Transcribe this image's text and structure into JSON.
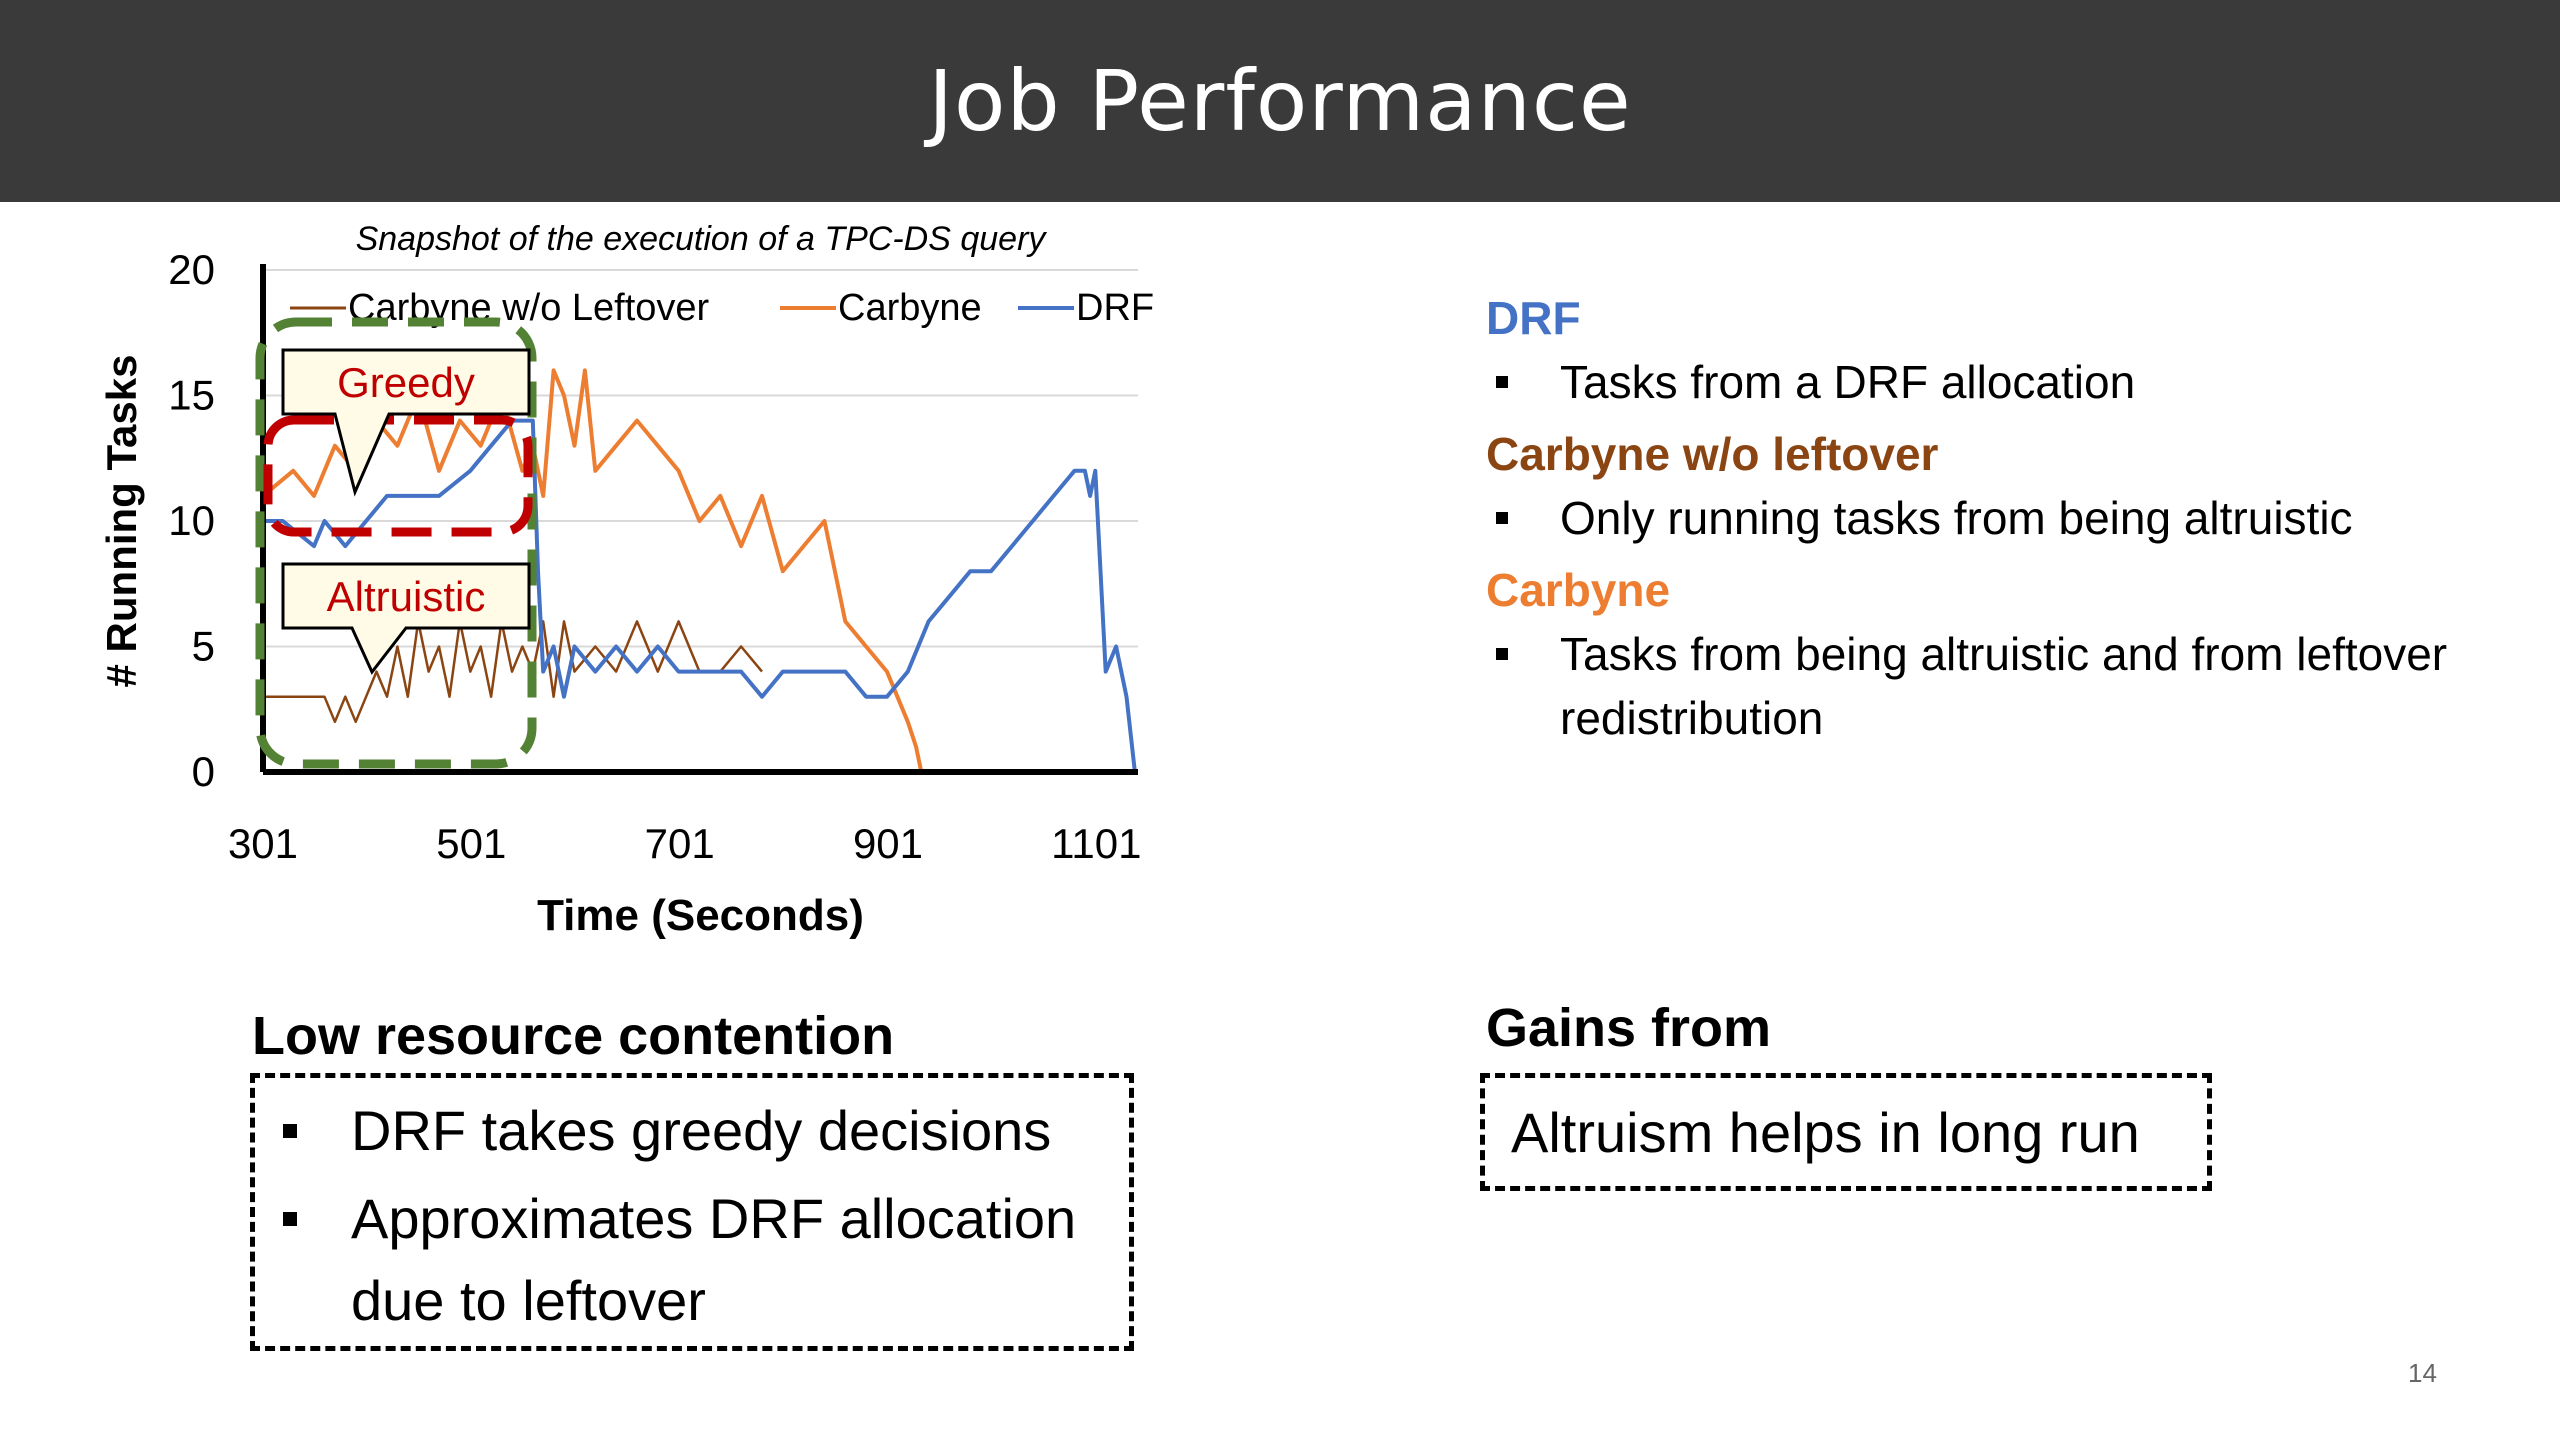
{
  "slide": {
    "title": "Job Performance",
    "page_number": "14"
  },
  "legend_panel": [
    {
      "heading": "DRF",
      "color": "#4472c4",
      "bullets": [
        "Tasks from a DRF allocation"
      ]
    },
    {
      "heading": "Carbyne w/o leftover",
      "color": "#8b4513",
      "bullets": [
        "Only running tasks from being altruistic"
      ]
    },
    {
      "heading": "Carbyne",
      "color": "#ed7d31",
      "bullets": [
        "Tasks from being altruistic and from leftover redistribution"
      ]
    }
  ],
  "low_contention": {
    "title": "Low resource contention",
    "bullets": [
      "DRF takes greedy decisions",
      "Approximates DRF allocation due to leftover"
    ]
  },
  "gains": {
    "title": "Gains from",
    "text": "Altruism helps in long run"
  },
  "colors": {
    "carbyne_wo": "#8b4513",
    "carbyne": "#ed7d31",
    "drf": "#4472c4",
    "greedy_box": "#c00000",
    "altruistic_box": "#548235"
  },
  "chart_data": {
    "type": "line",
    "title": "Snapshot of the execution of a TPC-DS query",
    "xlabel": "Time (Seconds)",
    "ylabel": "# Running Tasks",
    "xlim": [
      301,
      1141
    ],
    "ylim": [
      0,
      20
    ],
    "xticks": [
      301,
      501,
      701,
      901,
      1101
    ],
    "yticks": [
      0,
      5,
      10,
      15,
      20
    ],
    "grid": true,
    "legend_position": "top",
    "annotations": [
      {
        "text": "Greedy",
        "color": "#c00000"
      },
      {
        "text": "Altruistic",
        "color": "#c00000"
      }
    ],
    "series": [
      {
        "name": "Carbyne w/o Leftover",
        "x": [
          301,
          340,
          360,
          370,
          380,
          390,
          400,
          410,
          420,
          430,
          440,
          450,
          460,
          470,
          480,
          490,
          500,
          510,
          520,
          530,
          540,
          550,
          560,
          570,
          580,
          590,
          600,
          620,
          640,
          660,
          680,
          700,
          720,
          740,
          760,
          780
        ],
        "y": [
          3,
          3,
          3,
          2,
          3,
          2,
          3,
          4,
          3,
          5,
          3,
          6,
          4,
          5,
          3,
          6,
          4,
          5,
          3,
          6,
          4,
          5,
          4,
          6,
          3,
          6,
          4,
          5,
          4,
          6,
          4,
          6,
          4,
          4,
          5,
          4
        ]
      },
      {
        "name": "Carbyne",
        "x": [
          301,
          330,
          350,
          370,
          390,
          410,
          430,
          450,
          470,
          490,
          510,
          530,
          550,
          560,
          570,
          580,
          590,
          600,
          610,
          620,
          640,
          660,
          680,
          700,
          720,
          740,
          760,
          780,
          800,
          820,
          840,
          860,
          880,
          900,
          910,
          920,
          928,
          933
        ],
        "y": [
          11,
          12,
          11,
          13,
          12,
          14,
          13,
          15,
          12,
          14,
          13,
          15,
          12,
          13,
          11,
          16,
          15,
          13,
          16,
          12,
          13,
          14,
          13,
          12,
          10,
          11,
          9,
          11,
          8,
          9,
          10,
          6,
          5,
          4,
          3,
          2,
          1,
          0
        ]
      },
      {
        "name": "DRF",
        "x": [
          301,
          320,
          350,
          360,
          380,
          400,
          420,
          440,
          470,
          500,
          520,
          540,
          560,
          565,
          570,
          580,
          590,
          600,
          620,
          640,
          660,
          680,
          700,
          720,
          740,
          760,
          780,
          800,
          820,
          840,
          860,
          880,
          900,
          920,
          940,
          960,
          980,
          1000,
          1020,
          1040,
          1060,
          1080,
          1090,
          1095,
          1100,
          1110,
          1120,
          1130,
          1138
        ],
        "y": [
          10,
          10,
          9,
          10,
          9,
          10,
          11,
          11,
          11,
          12,
          13,
          14,
          14,
          8,
          4,
          5,
          3,
          5,
          4,
          5,
          4,
          5,
          4,
          4,
          4,
          4,
          3,
          4,
          4,
          4,
          4,
          3,
          3,
          4,
          6,
          7,
          8,
          8,
          9,
          10,
          11,
          12,
          12,
          11,
          12,
          4,
          5,
          3,
          0
        ]
      }
    ]
  }
}
